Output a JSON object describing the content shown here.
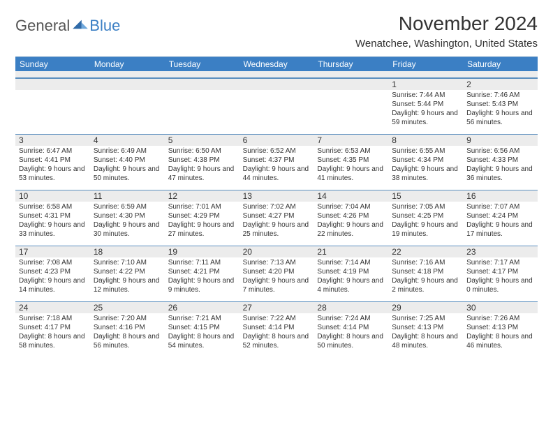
{
  "logo": {
    "general": "General",
    "blue": "Blue"
  },
  "header": {
    "month_title": "November 2024",
    "location": "Wenatchee, Washington, United States"
  },
  "colors": {
    "brand_blue": "#3b7fc4",
    "band_gray": "#ececec",
    "rule_blue": "#5b8fbf",
    "text": "#333333",
    "logo_gray": "#555555",
    "background": "#ffffff"
  },
  "weekdays": [
    "Sunday",
    "Monday",
    "Tuesday",
    "Wednesday",
    "Thursday",
    "Friday",
    "Saturday"
  ],
  "weeks": [
    [
      {
        "n": "",
        "sunrise": "",
        "sunset": "",
        "daylight": ""
      },
      {
        "n": "",
        "sunrise": "",
        "sunset": "",
        "daylight": ""
      },
      {
        "n": "",
        "sunrise": "",
        "sunset": "",
        "daylight": ""
      },
      {
        "n": "",
        "sunrise": "",
        "sunset": "",
        "daylight": ""
      },
      {
        "n": "",
        "sunrise": "",
        "sunset": "",
        "daylight": ""
      },
      {
        "n": "1",
        "sunrise": "Sunrise: 7:44 AM",
        "sunset": "Sunset: 5:44 PM",
        "daylight": "Daylight: 9 hours and 59 minutes."
      },
      {
        "n": "2",
        "sunrise": "Sunrise: 7:46 AM",
        "sunset": "Sunset: 5:43 PM",
        "daylight": "Daylight: 9 hours and 56 minutes."
      }
    ],
    [
      {
        "n": "3",
        "sunrise": "Sunrise: 6:47 AM",
        "sunset": "Sunset: 4:41 PM",
        "daylight": "Daylight: 9 hours and 53 minutes."
      },
      {
        "n": "4",
        "sunrise": "Sunrise: 6:49 AM",
        "sunset": "Sunset: 4:40 PM",
        "daylight": "Daylight: 9 hours and 50 minutes."
      },
      {
        "n": "5",
        "sunrise": "Sunrise: 6:50 AM",
        "sunset": "Sunset: 4:38 PM",
        "daylight": "Daylight: 9 hours and 47 minutes."
      },
      {
        "n": "6",
        "sunrise": "Sunrise: 6:52 AM",
        "sunset": "Sunset: 4:37 PM",
        "daylight": "Daylight: 9 hours and 44 minutes."
      },
      {
        "n": "7",
        "sunrise": "Sunrise: 6:53 AM",
        "sunset": "Sunset: 4:35 PM",
        "daylight": "Daylight: 9 hours and 41 minutes."
      },
      {
        "n": "8",
        "sunrise": "Sunrise: 6:55 AM",
        "sunset": "Sunset: 4:34 PM",
        "daylight": "Daylight: 9 hours and 38 minutes."
      },
      {
        "n": "9",
        "sunrise": "Sunrise: 6:56 AM",
        "sunset": "Sunset: 4:33 PM",
        "daylight": "Daylight: 9 hours and 36 minutes."
      }
    ],
    [
      {
        "n": "10",
        "sunrise": "Sunrise: 6:58 AM",
        "sunset": "Sunset: 4:31 PM",
        "daylight": "Daylight: 9 hours and 33 minutes."
      },
      {
        "n": "11",
        "sunrise": "Sunrise: 6:59 AM",
        "sunset": "Sunset: 4:30 PM",
        "daylight": "Daylight: 9 hours and 30 minutes."
      },
      {
        "n": "12",
        "sunrise": "Sunrise: 7:01 AM",
        "sunset": "Sunset: 4:29 PM",
        "daylight": "Daylight: 9 hours and 27 minutes."
      },
      {
        "n": "13",
        "sunrise": "Sunrise: 7:02 AM",
        "sunset": "Sunset: 4:27 PM",
        "daylight": "Daylight: 9 hours and 25 minutes."
      },
      {
        "n": "14",
        "sunrise": "Sunrise: 7:04 AM",
        "sunset": "Sunset: 4:26 PM",
        "daylight": "Daylight: 9 hours and 22 minutes."
      },
      {
        "n": "15",
        "sunrise": "Sunrise: 7:05 AM",
        "sunset": "Sunset: 4:25 PM",
        "daylight": "Daylight: 9 hours and 19 minutes."
      },
      {
        "n": "16",
        "sunrise": "Sunrise: 7:07 AM",
        "sunset": "Sunset: 4:24 PM",
        "daylight": "Daylight: 9 hours and 17 minutes."
      }
    ],
    [
      {
        "n": "17",
        "sunrise": "Sunrise: 7:08 AM",
        "sunset": "Sunset: 4:23 PM",
        "daylight": "Daylight: 9 hours and 14 minutes."
      },
      {
        "n": "18",
        "sunrise": "Sunrise: 7:10 AM",
        "sunset": "Sunset: 4:22 PM",
        "daylight": "Daylight: 9 hours and 12 minutes."
      },
      {
        "n": "19",
        "sunrise": "Sunrise: 7:11 AM",
        "sunset": "Sunset: 4:21 PM",
        "daylight": "Daylight: 9 hours and 9 minutes."
      },
      {
        "n": "20",
        "sunrise": "Sunrise: 7:13 AM",
        "sunset": "Sunset: 4:20 PM",
        "daylight": "Daylight: 9 hours and 7 minutes."
      },
      {
        "n": "21",
        "sunrise": "Sunrise: 7:14 AM",
        "sunset": "Sunset: 4:19 PM",
        "daylight": "Daylight: 9 hours and 4 minutes."
      },
      {
        "n": "22",
        "sunrise": "Sunrise: 7:16 AM",
        "sunset": "Sunset: 4:18 PM",
        "daylight": "Daylight: 9 hours and 2 minutes."
      },
      {
        "n": "23",
        "sunrise": "Sunrise: 7:17 AM",
        "sunset": "Sunset: 4:17 PM",
        "daylight": "Daylight: 9 hours and 0 minutes."
      }
    ],
    [
      {
        "n": "24",
        "sunrise": "Sunrise: 7:18 AM",
        "sunset": "Sunset: 4:17 PM",
        "daylight": "Daylight: 8 hours and 58 minutes."
      },
      {
        "n": "25",
        "sunrise": "Sunrise: 7:20 AM",
        "sunset": "Sunset: 4:16 PM",
        "daylight": "Daylight: 8 hours and 56 minutes."
      },
      {
        "n": "26",
        "sunrise": "Sunrise: 7:21 AM",
        "sunset": "Sunset: 4:15 PM",
        "daylight": "Daylight: 8 hours and 54 minutes."
      },
      {
        "n": "27",
        "sunrise": "Sunrise: 7:22 AM",
        "sunset": "Sunset: 4:14 PM",
        "daylight": "Daylight: 8 hours and 52 minutes."
      },
      {
        "n": "28",
        "sunrise": "Sunrise: 7:24 AM",
        "sunset": "Sunset: 4:14 PM",
        "daylight": "Daylight: 8 hours and 50 minutes."
      },
      {
        "n": "29",
        "sunrise": "Sunrise: 7:25 AM",
        "sunset": "Sunset: 4:13 PM",
        "daylight": "Daylight: 8 hours and 48 minutes."
      },
      {
        "n": "30",
        "sunrise": "Sunrise: 7:26 AM",
        "sunset": "Sunset: 4:13 PM",
        "daylight": "Daylight: 8 hours and 46 minutes."
      }
    ]
  ]
}
